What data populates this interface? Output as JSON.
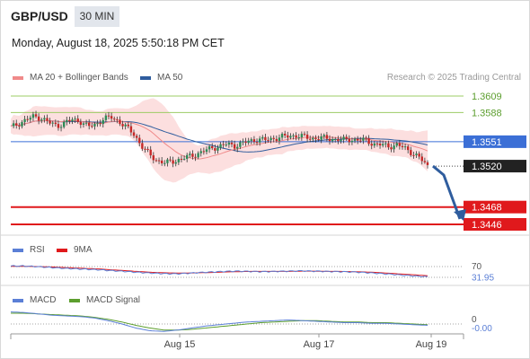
{
  "header": {
    "symbol": "GBP/USD",
    "timeframe": "30 MIN",
    "datetime": "Monday, August 18, 2025 5:50:18 PM CET"
  },
  "chart_data": [
    {
      "type": "line",
      "name": "price",
      "legend": [
        {
          "label": "MA 20 + Bollinger Bands",
          "color": "#f08a8a"
        },
        {
          "label": "MA 50",
          "color": "#2f5d9e"
        }
      ],
      "watermark": "Research © 2025 Trading Central",
      "y_scale": {
        "top_value": 1.3609,
        "bottom_value": 1.3446
      },
      "levels": [
        {
          "value": 1.3609,
          "label": "1.3609",
          "type": "resistance",
          "color": "#9ccc65"
        },
        {
          "value": 1.3588,
          "label": "1.3588",
          "type": "resistance",
          "color": "#9ccc65"
        },
        {
          "value": 1.3551,
          "label": "1.3551",
          "type": "pivot",
          "color": "#3b6fd6"
        },
        {
          "value": 1.352,
          "label": "1.3520",
          "type": "last",
          "color": "#222222"
        },
        {
          "value": 1.3468,
          "label": "1.3468",
          "type": "target",
          "color": "#e0191c"
        },
        {
          "value": 1.3446,
          "label": "1.3446",
          "type": "target",
          "color": "#e0191c"
        }
      ],
      "close_path": [
        1.3569,
        1.3574,
        1.3579,
        1.3583,
        1.3581,
        1.3575,
        1.3571,
        1.3575,
        1.3579,
        1.3577,
        1.357,
        1.3573,
        1.358,
        1.3582,
        1.3577,
        1.3569,
        1.356,
        1.3545,
        1.3534,
        1.3527,
        1.3524,
        1.3526,
        1.3529,
        1.3532,
        1.3535,
        1.3539,
        1.3543,
        1.3545,
        1.3548,
        1.3546,
        1.3549,
        1.3552,
        1.3554,
        1.3553,
        1.3555,
        1.3557,
        1.3558,
        1.3559,
        1.3557,
        1.3555,
        1.3556,
        1.3555,
        1.3554,
        1.3553,
        1.3554,
        1.3553,
        1.3553,
        1.3548,
        1.3547,
        1.3545,
        1.3547,
        1.3543,
        1.3537,
        1.353,
        1.352
      ],
      "forecast_to": 1.3446,
      "x_labels": [
        "Aug 15",
        "Aug 17",
        "Aug 19"
      ]
    },
    {
      "type": "line",
      "name": "rsi",
      "legend": [
        {
          "label": "RSI",
          "color": "#5b7fd6"
        },
        {
          "label": "9MA",
          "color": "#e0191c"
        }
      ],
      "levels": [
        {
          "value": 70,
          "label": "70"
        },
        {
          "value": 30,
          "label": ""
        }
      ],
      "current": {
        "value": 31.95,
        "label": "31.95"
      },
      "y_scale": {
        "min": 0,
        "max": 100
      },
      "rsi": [
        72,
        72,
        70,
        67,
        64,
        62,
        60,
        58,
        55,
        52,
        49,
        46,
        44,
        43,
        45,
        48,
        50,
        52,
        53,
        52,
        51,
        52,
        53,
        54,
        53,
        52,
        51,
        50,
        48,
        45,
        42,
        38,
        35,
        32
      ],
      "ma9": [
        71,
        71,
        70,
        69,
        67,
        65,
        63,
        61,
        58,
        55,
        52,
        49,
        47,
        46,
        46,
        47,
        48,
        50,
        51,
        52,
        52,
        52,
        52,
        53,
        53,
        52,
        52,
        51,
        50,
        48,
        45,
        42,
        39,
        36
      ]
    },
    {
      "type": "line",
      "name": "macd",
      "legend": [
        {
          "label": "MACD",
          "color": "#5b7fd6"
        },
        {
          "label": "MACD Signal",
          "color": "#5c9e2e"
        }
      ],
      "levels": [
        {
          "value": 0,
          "label": "0"
        }
      ],
      "current": {
        "value": -0.0,
        "label": "-0.00"
      },
      "macd": [
        0.0018,
        0.0017,
        0.0015,
        0.0013,
        0.0012,
        0.0011,
        0.0009,
        0.0005,
        0.0,
        -0.0006,
        -0.001,
        -0.0011,
        -0.0009,
        -0.0006,
        -0.0003,
        -0.0001,
        0.0001,
        0.0003,
        0.0004,
        0.0005,
        0.0006,
        0.0005,
        0.0004,
        0.0003,
        0.0002,
        0.0002,
        0.0001,
        0.0001,
        0.0,
        -0.0001,
        -0.0002
      ],
      "signal": [
        0.0016,
        0.0016,
        0.0015,
        0.0014,
        0.0013,
        0.0012,
        0.001,
        0.0007,
        0.0003,
        -0.0002,
        -0.0006,
        -0.0009,
        -0.0009,
        -0.0008,
        -0.0006,
        -0.0004,
        -0.0002,
        0.0,
        0.0002,
        0.0003,
        0.0004,
        0.0005,
        0.0005,
        0.0004,
        0.0003,
        0.0003,
        0.0002,
        0.0002,
        0.0001,
        0.0,
        -0.0001
      ]
    }
  ]
}
